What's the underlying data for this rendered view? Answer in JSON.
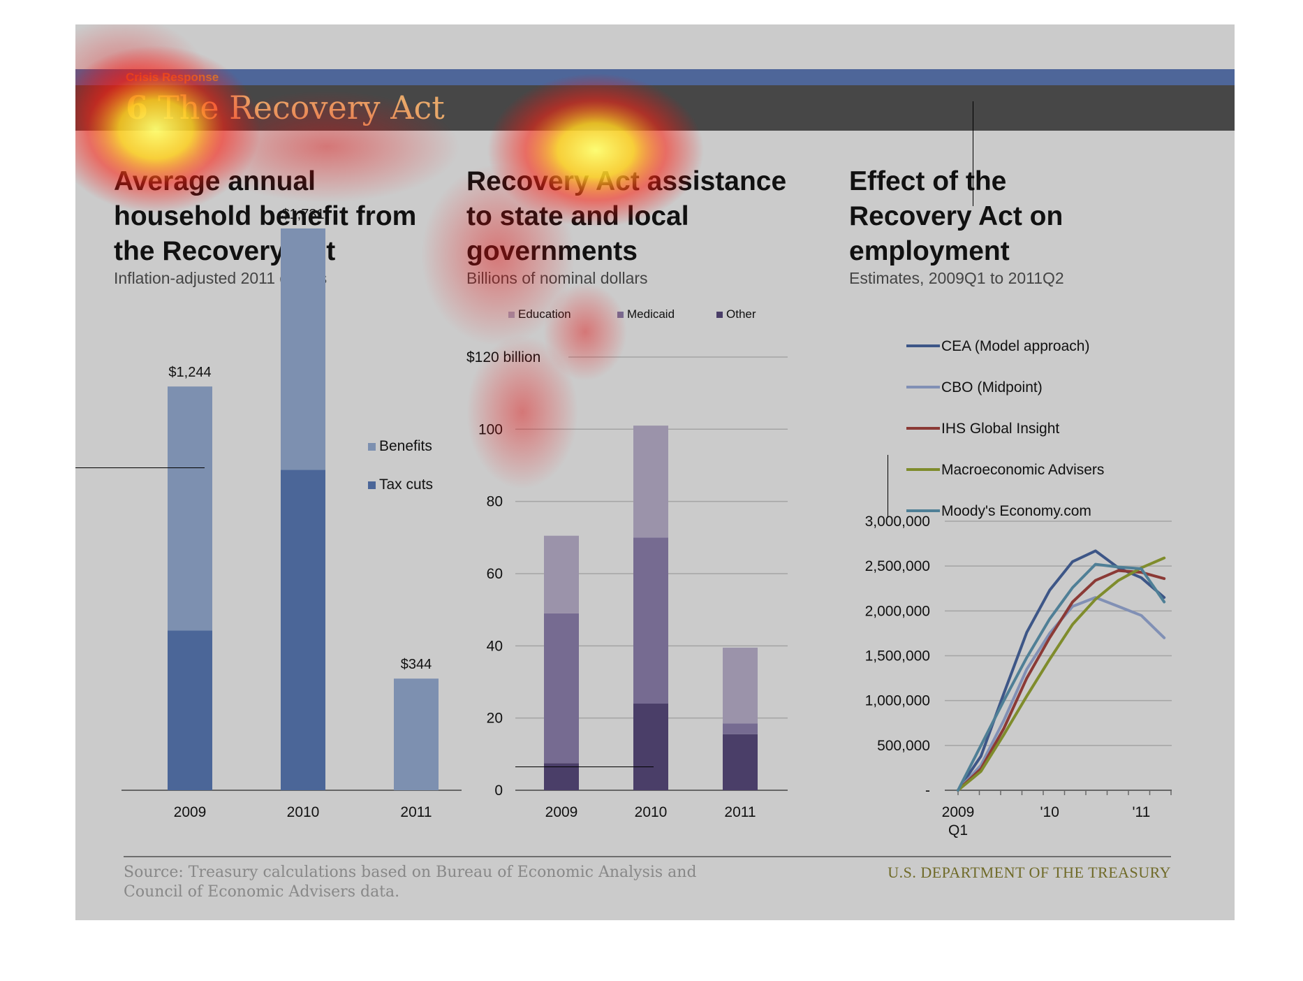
{
  "header": {
    "section": "Crisis Response",
    "number": "6",
    "title": "The Recovery Act"
  },
  "chart_data": [
    {
      "type": "bar",
      "title": "Average annual household benefit from the Recovery Act",
      "subtitle": "Inflation-adjusted 2011 dollars",
      "categories": [
        "2009",
        "2010",
        "2011"
      ],
      "stacked": true,
      "series": [
        {
          "name": "Tax cuts",
          "values": [
            492,
            987,
            0
          ],
          "color": "#4b6698"
        },
        {
          "name": "Benefits",
          "values": [
            752,
            744,
            344
          ],
          "color": "#7d90b0"
        }
      ],
      "totals": [
        1244,
        1731,
        344
      ],
      "total_labels": [
        "$1,244",
        "$1,731",
        "$344"
      ],
      "ylim": [
        0,
        1900
      ],
      "legend": "right",
      "legend_order": [
        "Benefits",
        "Tax cuts"
      ]
    },
    {
      "type": "bar",
      "title": "Recovery Act assistance to state and local governments",
      "subtitle": "Billions of nominal dollars",
      "categories": [
        "2009",
        "2010",
        "2011"
      ],
      "stacked": true,
      "series": [
        {
          "name": "Other",
          "values": [
            7.5,
            24,
            15.5
          ],
          "color": "#4a3e68"
        },
        {
          "name": "Medicaid",
          "values": [
            41.5,
            46,
            3
          ],
          "color": "#766b91"
        },
        {
          "name": "Education",
          "values": [
            21.5,
            31,
            21
          ],
          "color": "#9b93aa"
        }
      ],
      "legend_order": [
        "Education",
        "Medicaid",
        "Other"
      ],
      "yticks": [
        0,
        20,
        40,
        60,
        80,
        100,
        120
      ],
      "ytick_labels": [
        "0",
        "20",
        "40",
        "60",
        "80",
        "100",
        "$120 billion"
      ],
      "ylim": [
        0,
        120
      ],
      "grid": true,
      "legend": "top"
    },
    {
      "type": "line",
      "title": "Effect of the Recovery Act on employment",
      "subtitle": "Estimates, 2009Q1 to 2011Q2",
      "x": [
        "2009Q1",
        "2009Q2",
        "2009Q3",
        "2009Q4",
        "2010Q1",
        "2010Q2",
        "2010Q3",
        "2010Q4",
        "2011Q1",
        "2011Q2"
      ],
      "xtick_labels": [
        {
          "label": "2009",
          "label2": "Q1",
          "at": 0
        },
        {
          "label": "'10",
          "at": 4
        },
        {
          "label": "'11",
          "at": 8
        }
      ],
      "yticks": [
        0,
        500000,
        1000000,
        1500000,
        2000000,
        2500000,
        3000000
      ],
      "ytick_labels": [
        "-",
        "500,000",
        "1,000,000",
        "1,500,000",
        "2,000,000",
        "2,500,000",
        "3,000,000"
      ],
      "ylim": [
        0,
        3000000
      ],
      "grid": true,
      "legend": "top",
      "series": [
        {
          "name": "CEA (Model approach)",
          "color": "#3d5687",
          "values": [
            0,
            380000,
            1080000,
            1760000,
            2230000,
            2550000,
            2670000,
            2480000,
            2370000,
            2150000
          ]
        },
        {
          "name": "CBO (Midpoint)",
          "color": "#8190b5",
          "values": [
            0,
            280000,
            780000,
            1350000,
            1750000,
            2050000,
            2150000,
            2050000,
            1950000,
            1700000
          ]
        },
        {
          "name": "IHS Global Insight",
          "color": "#8b3a36",
          "values": [
            0,
            240000,
            690000,
            1250000,
            1700000,
            2100000,
            2340000,
            2450000,
            2430000,
            2360000
          ]
        },
        {
          "name": "Macroeconomic Advisers",
          "color": "#7f8c2c",
          "values": [
            0,
            210000,
            620000,
            1050000,
            1460000,
            1850000,
            2130000,
            2340000,
            2480000,
            2590000
          ]
        },
        {
          "name": "Moody's Economy.com",
          "color": "#4f7f96",
          "values": [
            0,
            500000,
            1000000,
            1480000,
            1910000,
            2260000,
            2520000,
            2490000,
            2470000,
            2100000
          ]
        }
      ]
    }
  ],
  "footer": {
    "source": "Source: Treasury calculations based on Bureau of Economic Analysis and Council of Economic Advisers data.",
    "brand": "U.S. DEPARTMENT OF THE TREASURY"
  }
}
